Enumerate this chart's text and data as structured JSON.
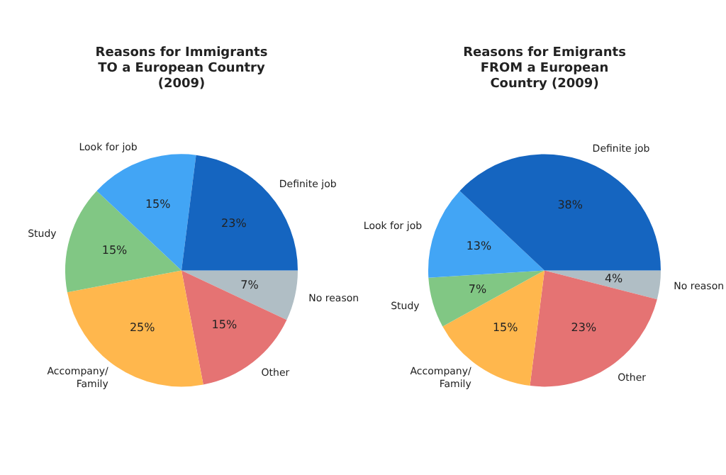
{
  "chart_data": [
    {
      "type": "pie",
      "title": "Reasons for Immigrants TO a European Country (2009)",
      "categories": [
        "Definite job",
        "Look for job",
        "Study",
        "Accompany/ Family",
        "Other",
        "No reason"
      ],
      "values": [
        23,
        15,
        15,
        25,
        15,
        7
      ],
      "colors": [
        "#1565c0",
        "#42a5f5",
        "#81c784",
        "#ffb74d",
        "#e57373",
        "#b0bec5"
      ],
      "value_labels": [
        "23%",
        "15%",
        "15%",
        "25%",
        "15%",
        "7%"
      ],
      "legend": false
    },
    {
      "type": "pie",
      "title": "Reasons for Emigrants FROM a European Country (2009)",
      "categories": [
        "Definite job",
        "Look for job",
        "Study",
        "Accompany/ Family",
        "Other",
        "No reason"
      ],
      "values": [
        38,
        13,
        7,
        15,
        23,
        4
      ],
      "colors": [
        "#1565c0",
        "#42a5f5",
        "#81c784",
        "#ffb74d",
        "#e57373",
        "#b0bec5"
      ],
      "value_labels": [
        "38%",
        "13%",
        "7%",
        "15%",
        "23%",
        "4%"
      ],
      "legend": false
    }
  ]
}
